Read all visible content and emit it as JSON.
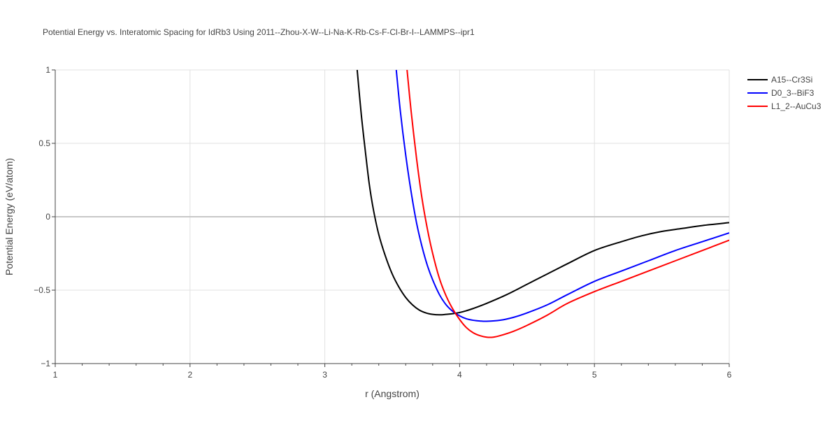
{
  "chart_data": {
    "type": "line",
    "title": "Potential Energy vs. Interatomic Spacing for IdRb3 Using 2011--Zhou-X-W--Li-Na-K-Rb-Cs-F-Cl-Br-I--LAMMPS--ipr1",
    "xlabel": "r (Angstrom)",
    "ylabel": "Potential Energy (eV/atom)",
    "xlim": [
      1,
      6
    ],
    "ylim": [
      -1,
      1
    ],
    "x_ticks": [
      1,
      2,
      3,
      4,
      5,
      6
    ],
    "x_tick_labels": [
      "1",
      "2",
      "3",
      "4",
      "5",
      "6"
    ],
    "y_ticks": [
      -1,
      -0.5,
      0,
      0.5,
      1
    ],
    "y_tick_labels": [
      "−1",
      "−0.5",
      "0",
      "0.5",
      "1"
    ],
    "grid": true,
    "legend_position": "top-right",
    "series": [
      {
        "name": "A15--Cr3Si",
        "color": "#000000",
        "x": [
          3.24,
          3.27,
          3.3,
          3.33,
          3.36,
          3.4,
          3.45,
          3.5,
          3.55,
          3.6,
          3.65,
          3.7,
          3.75,
          3.8,
          3.85,
          3.9,
          3.95,
          4.0,
          4.05,
          4.1,
          4.2,
          4.35,
          4.5,
          4.65,
          4.8,
          5.0,
          5.2,
          5.35,
          5.5,
          5.65,
          5.8,
          6.0
        ],
        "y": [
          1.0,
          0.7,
          0.45,
          0.22,
          0.05,
          -0.12,
          -0.27,
          -0.39,
          -0.48,
          -0.55,
          -0.6,
          -0.635,
          -0.655,
          -0.665,
          -0.668,
          -0.665,
          -0.66,
          -0.652,
          -0.64,
          -0.625,
          -0.59,
          -0.53,
          -0.46,
          -0.39,
          -0.32,
          -0.23,
          -0.17,
          -0.13,
          -0.1,
          -0.08,
          -0.06,
          -0.04
        ]
      },
      {
        "name": "D0_3--BiF3",
        "color": "#0000ff",
        "x": [
          3.53,
          3.56,
          3.6,
          3.64,
          3.68,
          3.72,
          3.76,
          3.8,
          3.85,
          3.9,
          3.95,
          4.0,
          4.05,
          4.1,
          4.15,
          4.2,
          4.3,
          4.4,
          4.5,
          4.65,
          4.8,
          5.0,
          5.2,
          5.4,
          5.6,
          5.8,
          6.0
        ],
        "y": [
          1.0,
          0.72,
          0.42,
          0.17,
          -0.04,
          -0.2,
          -0.33,
          -0.43,
          -0.53,
          -0.6,
          -0.645,
          -0.675,
          -0.695,
          -0.705,
          -0.71,
          -0.712,
          -0.705,
          -0.685,
          -0.655,
          -0.6,
          -0.53,
          -0.44,
          -0.37,
          -0.3,
          -0.23,
          -0.17,
          -0.11
        ]
      },
      {
        "name": "L1_2--AuCu3",
        "color": "#ff0000",
        "x": [
          3.61,
          3.64,
          3.68,
          3.72,
          3.76,
          3.8,
          3.85,
          3.9,
          3.95,
          4.0,
          4.05,
          4.1,
          4.15,
          4.2,
          4.25,
          4.3,
          4.4,
          4.5,
          4.65,
          4.8,
          5.0,
          5.2,
          5.4,
          5.6,
          5.8,
          6.0
        ],
        "y": [
          1.0,
          0.72,
          0.4,
          0.13,
          -0.08,
          -0.25,
          -0.42,
          -0.54,
          -0.63,
          -0.7,
          -0.755,
          -0.79,
          -0.81,
          -0.82,
          -0.82,
          -0.81,
          -0.78,
          -0.74,
          -0.67,
          -0.59,
          -0.51,
          -0.44,
          -0.37,
          -0.3,
          -0.23,
          -0.16
        ]
      }
    ]
  }
}
